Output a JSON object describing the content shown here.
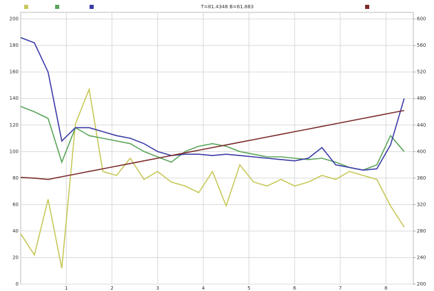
{
  "chart_data": {
    "type": "line",
    "title": "T=81.4348  B=61.883",
    "x": [
      0,
      0.3,
      0.6,
      0.9,
      1.2,
      1.5,
      1.8,
      2.1,
      2.4,
      2.7,
      3.0,
      3.3,
      3.6,
      3.9,
      4.2,
      4.5,
      4.8,
      5.1,
      5.4,
      5.7,
      6.0,
      6.3,
      6.6,
      6.9,
      7.2,
      7.5,
      7.8,
      8.1,
      8.4
    ],
    "xlim": [
      0,
      8.6
    ],
    "xticks": [
      1,
      2,
      3,
      4,
      5,
      6,
      7,
      8
    ],
    "ylim": [
      0,
      205
    ],
    "yticks": [
      0,
      20,
      40,
      60,
      80,
      100,
      120,
      140,
      160,
      180,
      200
    ],
    "y2lim": [
      200,
      610
    ],
    "y2ticks": [
      200,
      240,
      280,
      320,
      360,
      400,
      440,
      480,
      520,
      560,
      600
    ],
    "grid": true,
    "series": [
      {
        "color": "#c8c85a",
        "values": [
          38,
          22,
          64,
          12,
          121,
          147,
          85,
          82,
          95,
          79,
          85,
          77,
          74,
          69,
          85,
          59,
          90,
          77,
          74,
          79,
          74,
          77,
          82,
          79,
          85,
          82,
          79,
          59,
          43
        ]
      },
      {
        "color": "#5aa55a",
        "values": [
          134,
          130,
          125,
          92,
          118,
          112,
          110,
          108,
          106,
          100,
          96,
          92,
          100,
          104,
          106,
          104,
          100,
          98,
          96,
          96,
          95,
          94,
          95,
          92,
          88,
          86,
          90,
          112,
          100
        ]
      },
      {
        "color": "#3a3aa8",
        "values": [
          186,
          182,
          160,
          108,
          118,
          118,
          115,
          112,
          110,
          106,
          100,
          97,
          98,
          98,
          97,
          98,
          97,
          96,
          95,
          94,
          93,
          95,
          103,
          90,
          88,
          86,
          87,
          105,
          140
        ]
      },
      {
        "color": "#7a2a2a",
        "axis": "y2",
        "values": [
          361,
          360,
          358,
          362,
          366,
          370,
          374,
          378,
          382,
          386,
          390,
          394,
          398,
          402,
          406,
          410,
          414,
          418,
          422,
          426,
          430,
          434,
          438,
          442,
          446,
          450,
          454,
          458,
          462
        ]
      }
    ]
  }
}
